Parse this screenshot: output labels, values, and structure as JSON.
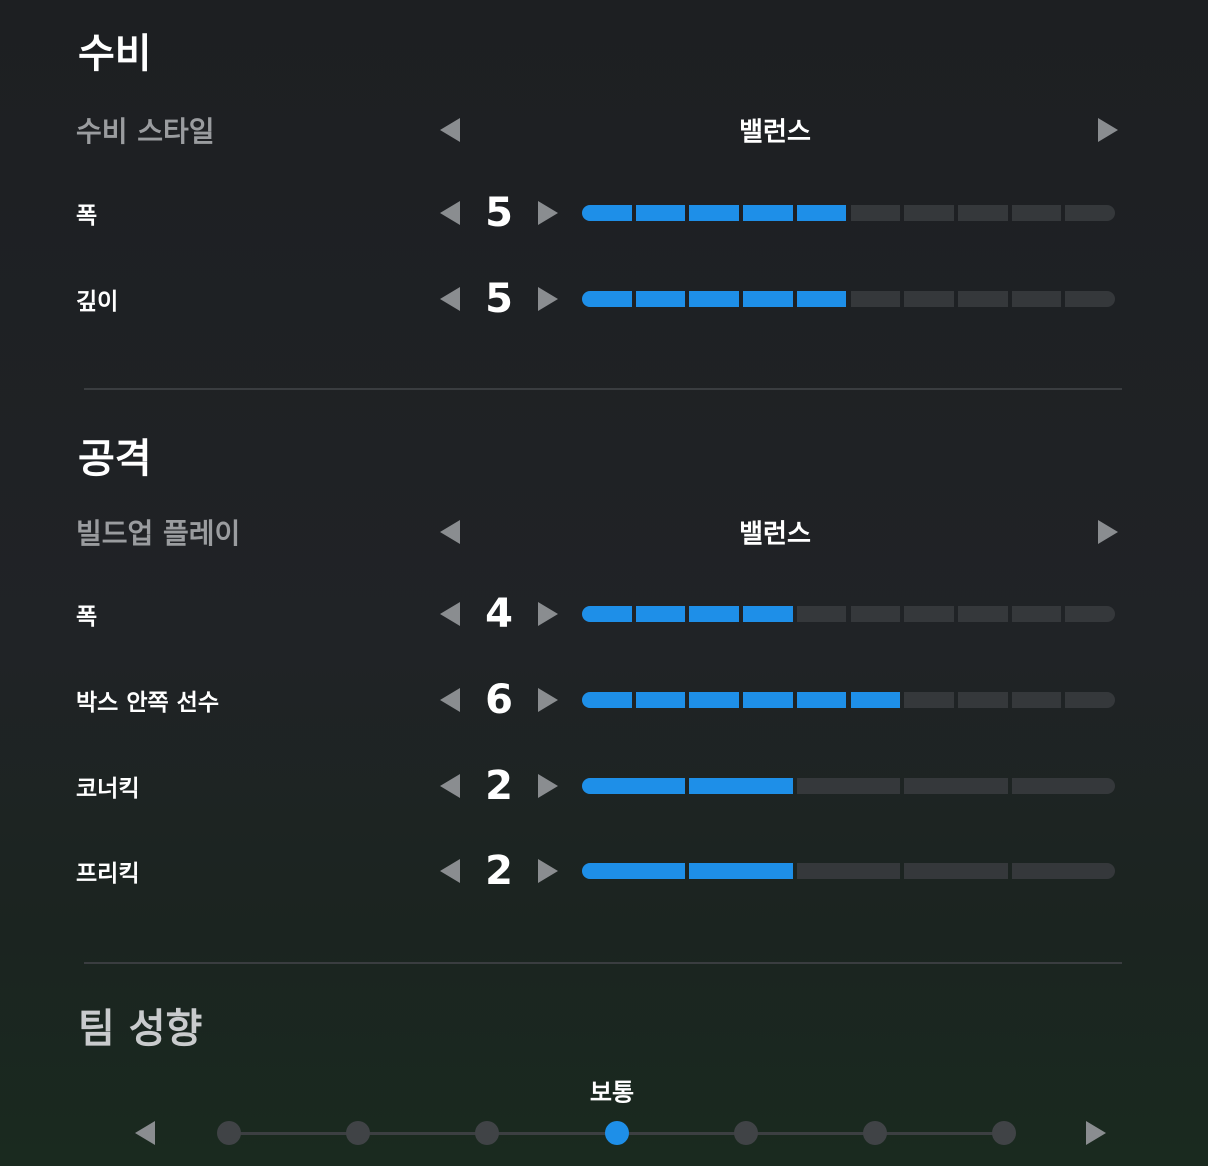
{
  "sections": [
    {
      "title": "수비",
      "style": {
        "label": "수비 스타일",
        "value": "밸런스"
      },
      "sliders": [
        {
          "label": "폭",
          "value": 5,
          "max": 10
        },
        {
          "label": "깊이",
          "value": 5,
          "max": 10
        }
      ]
    },
    {
      "title": "공격",
      "style": {
        "label": "빌드업 플레이",
        "value": "밸런스"
      },
      "sliders": [
        {
          "label": "폭",
          "value": 4,
          "max": 10
        },
        {
          "label": "박스 안쪽 선수",
          "value": 6,
          "max": 10
        },
        {
          "label": "코너킥",
          "value": 2,
          "max": 5
        },
        {
          "label": "프리킥",
          "value": 2,
          "max": 5
        }
      ]
    }
  ],
  "team_tendency": {
    "title": "팀 성향",
    "label": "보통",
    "steps": 7,
    "selected": 4
  }
}
